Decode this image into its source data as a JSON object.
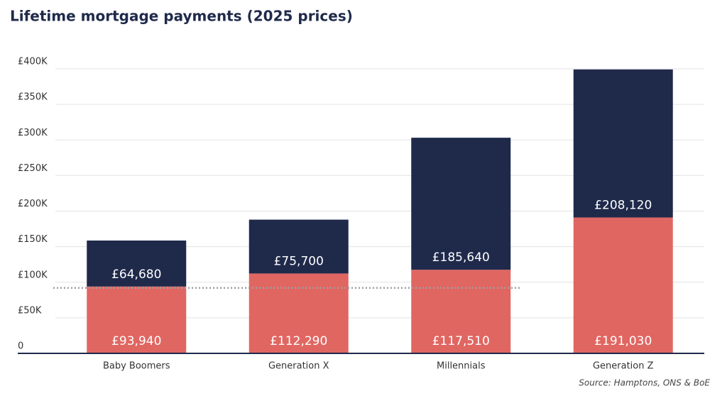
{
  "chart_data": {
    "type": "stacked-bar",
    "title": "Lifetime mortgage payments (2025 prices)",
    "source": "Source: Hamptons, ONS & BoE",
    "categories": [
      "Baby Boomers",
      "Generation X",
      "Millennials",
      "Generation Z"
    ],
    "series": [
      {
        "color": "#e06662",
        "values": [
          93940,
          112290,
          117510,
          191030
        ],
        "value_labels": [
          "£93,940",
          "£112,290",
          "£117,510",
          "£191,030"
        ]
      },
      {
        "color": "#1f2a4b",
        "values": [
          64680,
          75700,
          185640,
          208120
        ],
        "value_labels": [
          "£64,680",
          "£75,700",
          "£185,640",
          "£208,120"
        ]
      }
    ],
    "reference_line": {
      "value": 92000,
      "color": "#a0a0a0"
    },
    "ylim": [
      0,
      400000
    ],
    "yticks": [
      0,
      {
        "value": 50000,
        "label": "£50K"
      },
      {
        "value": 100000,
        "label": "£100K"
      },
      {
        "value": 150000,
        "label": "£150K"
      },
      {
        "value": 200000,
        "label": "£200K"
      },
      {
        "value": 250000,
        "label": "£250K"
      },
      {
        "value": 300000,
        "label": "£300K"
      },
      {
        "value": 350000,
        "label": "£350K"
      },
      {
        "value": 400000,
        "label": "£400K"
      }
    ],
    "grid": true
  }
}
